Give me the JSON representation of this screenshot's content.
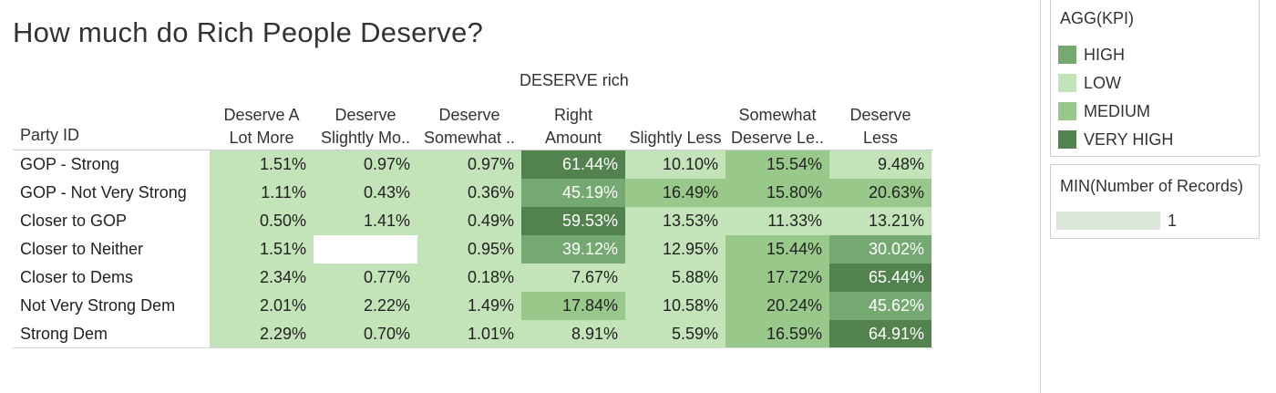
{
  "title": "How much do Rich People Deserve?",
  "chart_data": {
    "type": "heatmap",
    "title": "How much do Rich People Deserve?",
    "column_group_label": "DESERVE rich",
    "row_header": "Party ID",
    "columns": [
      [
        "Deserve A",
        "Lot More"
      ],
      [
        "Deserve",
        "Slightly Mo.."
      ],
      [
        "Deserve",
        "Somewhat .."
      ],
      [
        "Right",
        "Amount"
      ],
      [
        "Slightly Less"
      ],
      [
        "Somewhat",
        "Deserve Le.."
      ],
      [
        "Deserve",
        "Less"
      ]
    ],
    "rows": [
      "GOP - Strong",
      "GOP - Not Very Strong",
      "Closer to GOP",
      "Closer to Neither",
      "Closer to Dems",
      "Not Very Strong Dem",
      "Strong Dem"
    ],
    "values": [
      [
        "1.51%",
        "0.97%",
        "0.97%",
        "61.44%",
        "10.10%",
        "15.54%",
        "9.48%"
      ],
      [
        "1.11%",
        "0.43%",
        "0.36%",
        "45.19%",
        "16.49%",
        "15.80%",
        "20.63%"
      ],
      [
        "0.50%",
        "1.41%",
        "0.49%",
        "59.53%",
        "13.53%",
        "11.33%",
        "13.21%"
      ],
      [
        "1.51%",
        null,
        "0.95%",
        "39.12%",
        "12.95%",
        "15.44%",
        "30.02%"
      ],
      [
        "2.34%",
        "0.77%",
        "0.18%",
        "7.67%",
        "5.88%",
        "17.72%",
        "65.44%"
      ],
      [
        "2.01%",
        "2.22%",
        "1.49%",
        "17.84%",
        "10.58%",
        "20.24%",
        "45.62%"
      ],
      [
        "2.29%",
        "0.70%",
        "1.01%",
        "8.91%",
        "5.59%",
        "16.59%",
        "64.91%"
      ]
    ],
    "kpi": [
      [
        "LOW",
        "LOW",
        "LOW",
        "VERY HIGH",
        "LOW",
        "MEDIUM",
        "LOW"
      ],
      [
        "LOW",
        "LOW",
        "LOW",
        "HIGH",
        "MEDIUM",
        "MEDIUM",
        "MEDIUM"
      ],
      [
        "LOW",
        "LOW",
        "LOW",
        "VERY HIGH",
        "LOW",
        "LOW",
        "LOW"
      ],
      [
        "LOW",
        null,
        "LOW",
        "HIGH",
        "LOW",
        "MEDIUM",
        "HIGH"
      ],
      [
        "LOW",
        "LOW",
        "LOW",
        "LOW",
        "LOW",
        "MEDIUM",
        "VERY HIGH"
      ],
      [
        "LOW",
        "LOW",
        "LOW",
        "MEDIUM",
        "LOW",
        "MEDIUM",
        "HIGH"
      ],
      [
        "LOW",
        "LOW",
        "LOW",
        "LOW",
        "LOW",
        "MEDIUM",
        "VERY HIGH"
      ]
    ],
    "legend": {
      "title": "AGG(KPI)",
      "items": [
        {
          "label": "HIGH",
          "color": "#74a971"
        },
        {
          "label": "LOW",
          "color": "#c3e4b8"
        },
        {
          "label": "MEDIUM",
          "color": "#98c98b"
        },
        {
          "label": "VERY HIGH",
          "color": "#52834f"
        }
      ]
    },
    "size_legend": {
      "title": "MIN(Number of Records)",
      "value": "1",
      "color": "#dde6db"
    }
  }
}
